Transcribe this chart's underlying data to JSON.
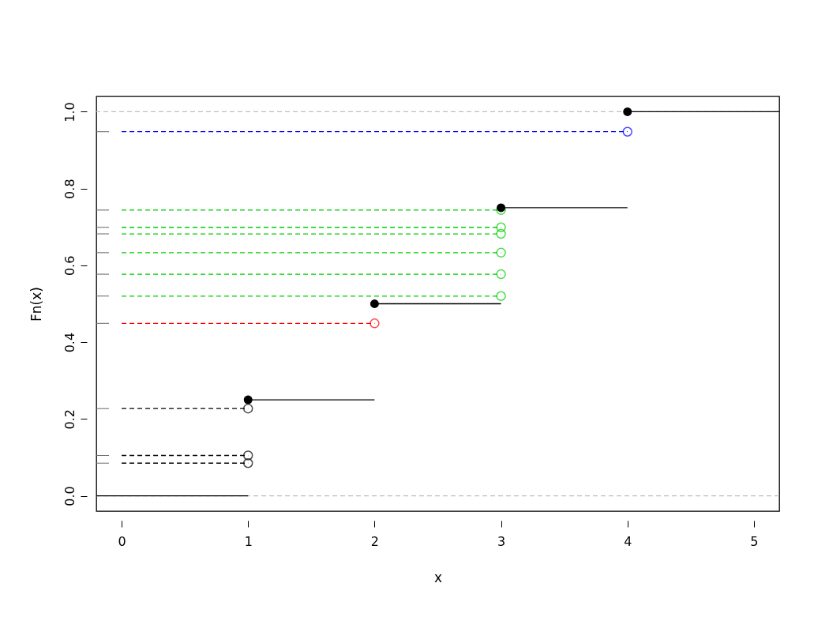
{
  "chart_data": {
    "type": "line",
    "xlabel": "x",
    "ylabel": "Fn(x)",
    "xlim": [
      -0.2,
      5.2
    ],
    "ylim": [
      -0.04,
      1.04
    ],
    "xticks": [
      0,
      1,
      2,
      3,
      4,
      5
    ],
    "yticks": [
      {
        "value": 0,
        "label": "0.0"
      },
      0.2,
      0.4,
      0.6,
      0.8,
      {
        "value": 1,
        "label": "1.0"
      }
    ],
    "grid": false,
    "ref_lines": [
      {
        "axis": "y",
        "value": 0,
        "color": "#bebebe",
        "line_style": "dashed"
      },
      {
        "axis": "y",
        "value": 1,
        "color": "#bebebe",
        "line_style": "dashed"
      }
    ],
    "series": [
      {
        "color": "#000000",
        "line_style": "solid",
        "x": [
          -0.2,
          1
        ],
        "values": [
          0,
          0
        ]
      },
      {
        "color": "#000000",
        "line_style": "solid",
        "x": [
          1,
          2
        ],
        "values": [
          0.25,
          0.25
        ]
      },
      {
        "color": "#000000",
        "line_style": "solid",
        "x": [
          2,
          3
        ],
        "values": [
          0.5,
          0.5
        ]
      },
      {
        "color": "#000000",
        "line_style": "solid",
        "x": [
          3,
          4
        ],
        "values": [
          0.75,
          0.75
        ]
      },
      {
        "color": "#000000",
        "line_style": "solid",
        "x": [
          4,
          5.2
        ],
        "values": [
          1,
          1
        ]
      },
      {
        "type": "scatter",
        "color": "#000000",
        "marker": "circle",
        "x": [
          1,
          2,
          3,
          4
        ],
        "values": [
          0.25,
          0.5,
          0.75,
          1
        ]
      },
      {
        "type": "line",
        "color": "#000000",
        "line_style": "dashed",
        "marker": "circle",
        "x": [
          0,
          1
        ],
        "values": [
          0.085,
          0.085
        ]
      },
      {
        "type": "line",
        "color": "#000000",
        "line_style": "dashed",
        "marker": "circle",
        "x": [
          0,
          1
        ],
        "values": [
          0.105,
          0.105
        ]
      },
      {
        "type": "line",
        "color": "#000000",
        "line_style": "dashed",
        "marker": "circle",
        "x": [
          0,
          1
        ],
        "values": [
          0.227,
          0.227
        ]
      },
      {
        "type": "line",
        "color": "#ff0000",
        "line_style": "dashed",
        "marker": "circle",
        "x": [
          0,
          2
        ],
        "values": [
          0.449,
          0.449
        ]
      },
      {
        "type": "line",
        "color": "#00cd00",
        "line_style": "dashed",
        "marker": "circle",
        "x": [
          0,
          3
        ],
        "values": [
          0.52,
          0.52
        ]
      },
      {
        "type": "line",
        "color": "#00cd00",
        "line_style": "dashed",
        "marker": "circle",
        "x": [
          0,
          3
        ],
        "values": [
          0.577,
          0.577
        ]
      },
      {
        "type": "line",
        "color": "#00cd00",
        "line_style": "dashed",
        "marker": "circle",
        "x": [
          0,
          3
        ],
        "values": [
          0.633,
          0.633
        ]
      },
      {
        "type": "line",
        "color": "#00cd00",
        "line_style": "dashed",
        "marker": "circle",
        "x": [
          0,
          3
        ],
        "values": [
          0.682,
          0.682
        ]
      },
      {
        "type": "line",
        "color": "#00cd00",
        "line_style": "dashed",
        "marker": "circle",
        "x": [
          0,
          3
        ],
        "values": [
          0.699,
          0.699
        ]
      },
      {
        "type": "line",
        "color": "#00cd00",
        "line_style": "dashed",
        "marker": "circle",
        "x": [
          0,
          3
        ],
        "values": [
          0.744,
          0.744
        ]
      },
      {
        "type": "line",
        "color": "#0000ff",
        "line_style": "dashed",
        "marker": "circle",
        "x": [
          0,
          4
        ],
        "values": [
          0.948,
          0.948
        ]
      }
    ]
  }
}
